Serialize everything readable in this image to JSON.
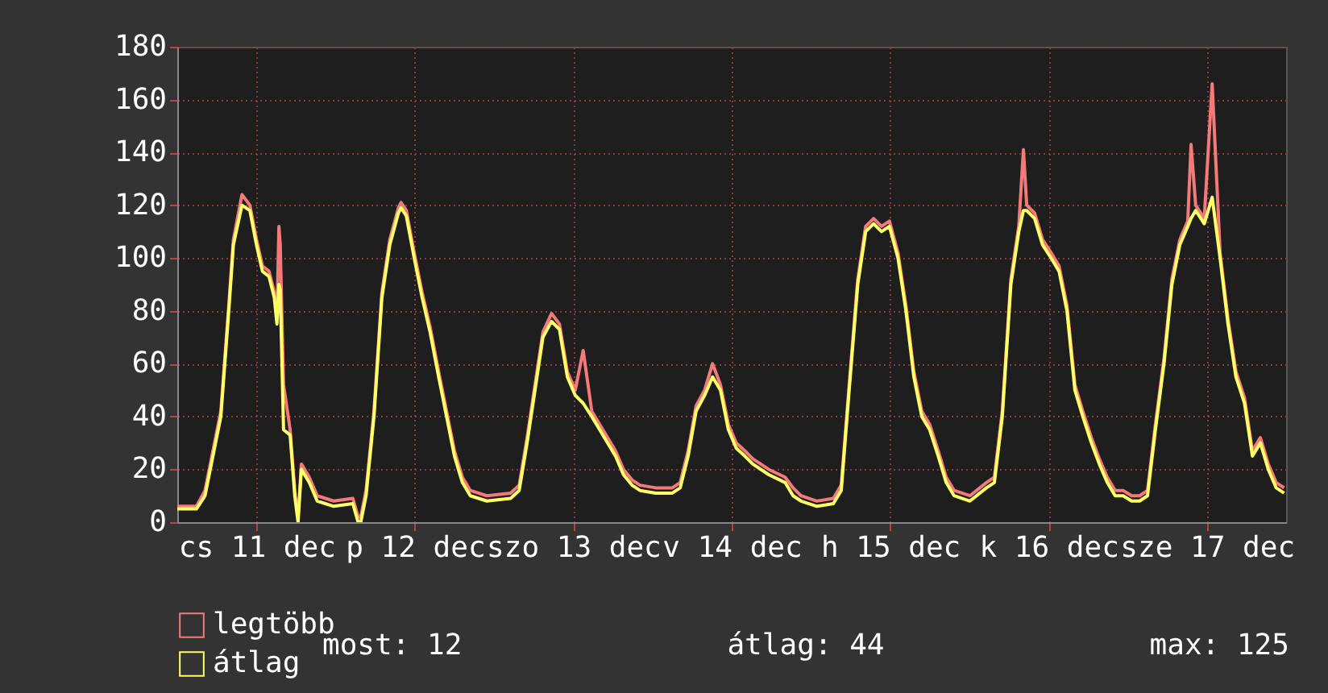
{
  "chart_data": {
    "type": "line",
    "x": [
      "--12-11T00:00",
      "--12-11T02:54",
      "--12-11T04:12",
      "--12-11T06:36",
      "--12-11T07:48",
      "--12-11T08:30",
      "--12-11T09:48",
      "--12-11T11:00",
      "--12-11T12:00",
      "--12-11T12:54",
      "--12-11T13:54",
      "--12-11T14:42",
      "--12-11T15:06",
      "--12-11T15:24",
      "--12-11T15:36",
      "--12-11T16:06",
      "--12-11T17:06",
      "--12-11T17:48",
      "--12-11T18:18",
      "--12-11T18:48",
      "--12-11T20:00",
      "--12-11T21:12",
      "--12-11T23:42",
      "--12-12T02:36",
      "--12-12T03:24",
      "--12-12T03:48",
      "--12-12T04:36",
      "--12-12T05:48",
      "--12-12T07:00",
      "--12-12T08:12",
      "--12-12T09:30",
      "--12-12T09:54",
      "--12-12T10:42",
      "--12-12T11:54",
      "--12-12T13:06",
      "--12-12T14:18",
      "--12-12T15:36",
      "--12-12T16:48",
      "--12-12T18:00",
      "--12-12T19:12",
      "--12-12T20:24",
      "--12-12T22:54",
      "--12-13T02:30",
      "--12-13T03:48",
      "--12-13T05:00",
      "--12-13T06:12",
      "--12-13T07:24",
      "--12-13T08:42",
      "--12-13T09:54",
      "--12-13T11:06",
      "--12-13T12:18",
      "--12-13T13:30",
      "--12-13T14:48",
      "--12-13T16:00",
      "--12-13T17:12",
      "--12-13T18:24",
      "--12-13T19:36",
      "--12-13T20:54",
      "--12-13T22:06",
      "--12-14T00:30",
      "--12-14T03:00",
      "--12-14T04:12",
      "--12-14T05:24",
      "--12-14T06:36",
      "--12-14T07:54",
      "--12-14T09:06",
      "--12-14T10:18",
      "--12-14T11:30",
      "--12-14T12:42",
      "--12-14T14:00",
      "--12-14T15:12",
      "--12-14T17:36",
      "--12-14T20:06",
      "--12-14T21:18",
      "--12-14T22:30",
      "--12-15T00:54",
      "--12-15T03:24",
      "--12-15T04:36",
      "--12-15T05:48",
      "--12-15T07:06",
      "--12-15T08:18",
      "--12-15T09:30",
      "--12-15T10:42",
      "--12-15T11:54",
      "--12-15T13:12",
      "--12-15T14:24",
      "--12-15T15:36",
      "--12-15T16:48",
      "--12-15T18:00",
      "--12-15T19:18",
      "--12-15T20:30",
      "--12-15T21:42",
      "--12-16T00:06",
      "--12-16T02:36",
      "--12-16T03:48",
      "--12-16T05:00",
      "--12-16T06:18",
      "--12-16T07:30",
      "--12-16T08:12",
      "--12-16T08:42",
      "--12-16T09:54",
      "--12-16T11:06",
      "--12-16T12:24",
      "--12-16T13:36",
      "--12-16T14:48",
      "--12-16T16:00",
      "--12-16T17:12",
      "--12-16T18:30",
      "--12-16T19:42",
      "--12-16T20:54",
      "--12-16T22:06",
      "--12-16T23:18",
      "--12-17T00:36",
      "--12-17T01:48",
      "--12-17T03:00",
      "--12-17T04:12",
      "--12-17T05:30",
      "--12-17T06:42",
      "--12-17T07:54",
      "--12-17T09:06",
      "--12-17T09:36",
      "--12-17T10:18",
      "--12-17T11:36",
      "--12-17T12:48",
      "--12-17T14:00",
      "--12-17T15:12",
      "--12-17T16:24",
      "--12-17T17:42",
      "--12-17T18:54",
      "--12-17T20:06",
      "--12-17T21:18",
      "--12-17T22:30",
      "--12-17T23:42"
    ],
    "series": [
      {
        "name": "legtöbb",
        "color": "#f47a7a",
        "values": [
          6,
          6,
          12,
          42,
          82,
          107,
          124,
          120,
          107,
          97,
          95,
          87,
          77,
          112,
          105,
          52,
          35,
          12,
          2,
          22,
          17,
          10,
          8,
          9,
          2,
          2,
          12,
          42,
          87,
          107,
          119,
          121,
          118,
          102,
          87,
          74,
          57,
          42,
          27,
          17,
          12,
          10,
          11,
          14,
          32,
          52,
          72,
          79,
          75,
          57,
          50,
          65,
          42,
          37,
          32,
          27,
          20,
          16,
          14,
          13,
          13,
          15,
          27,
          44,
          50,
          60,
          52,
          37,
          30,
          27,
          24,
          20,
          17,
          13,
          10,
          8,
          9,
          14,
          52,
          92,
          112,
          115,
          112,
          114,
          102,
          82,
          57,
          42,
          37,
          27,
          17,
          12,
          10,
          15,
          17,
          42,
          92,
          112,
          141,
          120,
          117,
          107,
          102,
          97,
          82,
          52,
          42,
          32,
          24,
          17,
          12,
          12,
          10,
          10,
          12,
          37,
          62,
          92,
          107,
          114,
          143,
          120,
          115,
          166,
          102,
          77,
          57,
          47,
          27,
          32,
          22,
          15,
          13
        ]
      },
      {
        "name": "átlag",
        "color": "#ffff66",
        "values": [
          5,
          5,
          10,
          40,
          80,
          105,
          120,
          118,
          105,
          95,
          93,
          85,
          75,
          90,
          88,
          35,
          33,
          10,
          0,
          20,
          15,
          8,
          6,
          7,
          0,
          0,
          10,
          40,
          85,
          105,
          117,
          119,
          116,
          100,
          85,
          72,
          55,
          40,
          25,
          15,
          10,
          8,
          9,
          12,
          30,
          50,
          70,
          76,
          73,
          55,
          48,
          45,
          40,
          35,
          30,
          25,
          18,
          14,
          12,
          11,
          11,
          13,
          25,
          42,
          48,
          55,
          50,
          35,
          28,
          25,
          22,
          18,
          15,
          10,
          8,
          6,
          7,
          12,
          50,
          90,
          110,
          113,
          110,
          112,
          100,
          80,
          55,
          40,
          35,
          25,
          15,
          10,
          8,
          13,
          15,
          40,
          90,
          110,
          118,
          118,
          115,
          105,
          100,
          95,
          80,
          50,
          40,
          30,
          22,
          15,
          10,
          10,
          8,
          8,
          10,
          35,
          60,
          90,
          105,
          112,
          115,
          118,
          113,
          123,
          100,
          75,
          55,
          45,
          25,
          30,
          20,
          13,
          11
        ]
      }
    ],
    "xlim": [
      "--12-11T00:00",
      "--12-18T00:00"
    ],
    "xticks": [
      {
        "value": "--12-11T12:00",
        "label": "cs 11 dec"
      },
      {
        "value": "--12-12T12:00",
        "label": "p 12 dec"
      },
      {
        "value": "--12-13T12:00",
        "label": "szo 13 dec"
      },
      {
        "value": "--12-14T12:00",
        "label": "v 14 dec"
      },
      {
        "value": "--12-15T12:00",
        "label": "h 15 dec"
      },
      {
        "value": "--12-16T12:00",
        "label": "k 16 dec"
      },
      {
        "value": "--12-17T12:00",
        "label": "sze 17 dec"
      }
    ],
    "ylim": [
      0,
      180
    ],
    "yticks": [
      0,
      20,
      40,
      60,
      80,
      100,
      120,
      140,
      160,
      180
    ],
    "grid": true,
    "legend": "bottom left",
    "annotations": [
      "most: 12",
      "átlag: 44",
      "max: 125"
    ]
  }
}
